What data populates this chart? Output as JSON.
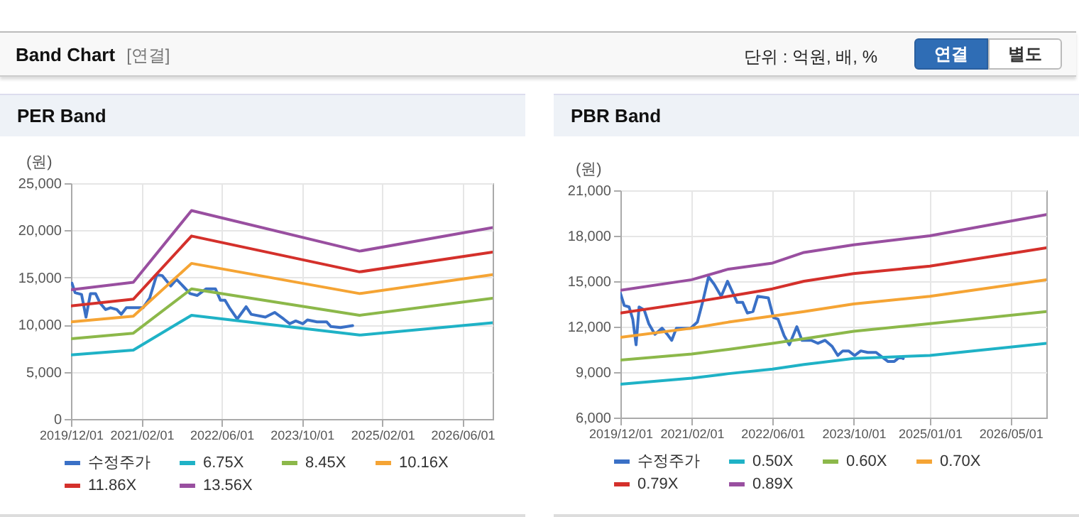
{
  "chart_data": [
    {
      "type": "other",
      "title": "Band Chart",
      "annotations": [
        "[연결]",
        "단위 : 억원, 배, %",
        "연결",
        "별도"
      ]
    },
    {
      "type": "line",
      "title": "PER Band",
      "ylabel": "(원)",
      "xlim": [
        "2019-12-01",
        "2026-12-01"
      ],
      "ylim": [
        0,
        25000
      ],
      "yticks": [
        {
          "value": 0,
          "label": "0"
        },
        {
          "value": 5000,
          "label": "5,000"
        },
        {
          "value": 10000,
          "label": "10,000"
        },
        {
          "value": 15000,
          "label": "15,000"
        },
        {
          "value": 20000,
          "label": "20,000"
        },
        {
          "value": 25000,
          "label": "25,000"
        }
      ],
      "xticks": [
        {
          "value": "2019-12-01",
          "label": "2019/12/01"
        },
        {
          "value": "2021-02-01",
          "label": "2021/02/01"
        },
        {
          "value": "2022-06-01",
          "label": "2022/06/01"
        },
        {
          "value": "2023-10-01",
          "label": "2023/10/01"
        },
        {
          "value": "2025-02-01",
          "label": "2025/02/01"
        },
        {
          "value": "2026-06-01",
          "label": "2026/06/01"
        }
      ],
      "grid": true,
      "legend": "bottom",
      "series": [
        {
          "name": "수정주가",
          "color": "#3a70c6",
          "x": [
            "2019-12-07",
            "2019-12-26",
            "2020-02-03",
            "2020-03-01",
            "2020-03-28",
            "2020-04-28",
            "2020-05-25",
            "2020-06-28",
            "2020-07-28",
            "2020-09-04",
            "2020-10-01",
            "2020-11-01",
            "2021-01-10",
            "2021-02-10",
            "2021-03-22",
            "2021-05-04",
            "2021-06-07",
            "2021-07-28",
            "2021-09-01",
            "2021-10-10",
            "2021-11-22",
            "2022-01-04",
            "2022-02-28",
            "2022-04-25",
            "2022-05-25",
            "2022-06-22",
            "2022-07-19",
            "2022-09-04",
            "2022-10-28",
            "2022-11-28",
            "2023-02-22",
            "2023-04-19",
            "2023-06-13",
            "2023-07-19",
            "2023-08-25",
            "2023-10-07",
            "2023-11-04",
            "2024-01-01",
            "2024-02-28",
            "2024-03-25",
            "2024-05-22",
            "2024-08-04"
          ],
          "values": [
            14400,
            13400,
            13200,
            10800,
            13300,
            13300,
            12300,
            11600,
            11800,
            11600,
            11100,
            11800,
            11800,
            11800,
            12800,
            15300,
            15200,
            14100,
            14800,
            14100,
            13300,
            13100,
            13800,
            13800,
            12600,
            12600,
            11800,
            10600,
            11900,
            11100,
            10800,
            11300,
            10600,
            10100,
            10400,
            10100,
            10500,
            10300,
            10300,
            9800,
            9700,
            9900
          ]
        },
        {
          "name": "6.75X",
          "color": "#1fb2c6",
          "x": [
            "2019-12-01",
            "2020-12-13",
            "2021-12-01",
            "2024-09-15",
            "2026-12-01"
          ],
          "values": [
            6800,
            7300,
            11000,
            8900,
            10200
          ]
        },
        {
          "name": "8.45X",
          "color": "#8cb84a",
          "x": [
            "2019-12-01",
            "2020-12-13",
            "2021-12-01",
            "2024-09-15",
            "2026-12-01"
          ],
          "values": [
            8500,
            9100,
            13800,
            11000,
            12800
          ]
        },
        {
          "name": "10.16X",
          "color": "#f5a434",
          "x": [
            "2019-12-01",
            "2020-12-13",
            "2021-12-01",
            "2024-09-15",
            "2026-12-01"
          ],
          "values": [
            10300,
            10900,
            16500,
            13300,
            15300
          ]
        },
        {
          "name": "11.86X",
          "color": "#d4302b",
          "x": [
            "2019-12-01",
            "2020-12-13",
            "2021-12-01",
            "2024-09-15",
            "2026-12-01"
          ],
          "values": [
            12000,
            12700,
            19400,
            15600,
            17700
          ]
        },
        {
          "name": "13.56X",
          "color": "#994fa0",
          "x": [
            "2019-12-01",
            "2020-12-13",
            "2021-12-01",
            "2024-09-15",
            "2026-12-01"
          ],
          "values": [
            13700,
            14500,
            22100,
            17800,
            20300
          ]
        }
      ]
    },
    {
      "type": "line",
      "title": "PBR Band",
      "ylabel": "(원)",
      "xlim": [
        "2019-12-01",
        "2026-12-01"
      ],
      "ylim": [
        6000,
        21000
      ],
      "yticks": [
        {
          "value": 6000,
          "label": "6,000"
        },
        {
          "value": 9000,
          "label": "9,000"
        },
        {
          "value": 12000,
          "label": "12,000"
        },
        {
          "value": 15000,
          "label": "15,000"
        },
        {
          "value": 18000,
          "label": "18,000"
        },
        {
          "value": 21000,
          "label": "21,000"
        }
      ],
      "xticks": [
        {
          "value": "2019-12-01",
          "label": "2019/12/01"
        },
        {
          "value": "2021-02-01",
          "label": "2021/02/01"
        },
        {
          "value": "2022-06-01",
          "label": "2022/06/01"
        },
        {
          "value": "2023-10-01",
          "label": "2023/10/01"
        },
        {
          "value": "2025-01-01",
          "label": "2025/01/01"
        },
        {
          "value": "2026-05-01",
          "label": "2026/05/01"
        }
      ],
      "grid": true,
      "legend": "bottom",
      "series": [
        {
          "name": "수정주가",
          "color": "#3a70c6",
          "x": [
            "2019-12-01",
            "2019-12-24",
            "2020-01-22",
            "2020-02-13",
            "2020-03-04",
            "2020-03-22",
            "2020-04-22",
            "2020-05-19",
            "2020-06-25",
            "2020-08-07",
            "2020-09-07",
            "2020-10-04",
            "2020-11-01",
            "2020-12-13",
            "2021-01-25",
            "2021-03-07",
            "2021-04-07",
            "2021-05-13",
            "2021-06-16",
            "2021-07-28",
            "2021-09-04",
            "2021-11-01",
            "2021-12-04",
            "2022-01-01",
            "2022-02-04",
            "2022-03-04",
            "2022-05-07",
            "2022-06-07",
            "2022-07-04",
            "2022-08-10",
            "2022-09-10",
            "2022-10-25",
            "2022-11-25",
            "2023-01-19",
            "2023-03-01",
            "2023-04-13",
            "2023-05-25",
            "2023-06-28",
            "2023-07-28",
            "2023-09-01",
            "2023-10-07",
            "2023-11-13",
            "2023-12-25",
            "2024-02-13",
            "2024-03-19",
            "2024-04-25",
            "2024-06-01",
            "2024-07-04",
            "2024-07-25"
          ],
          "values": [
            14200,
            13400,
            13300,
            12500,
            10800,
            13300,
            13100,
            12200,
            11500,
            11900,
            11500,
            11100,
            11900,
            11900,
            11900,
            12300,
            13600,
            15300,
            14800,
            14000,
            15000,
            13600,
            13600,
            12900,
            13000,
            14000,
            13900,
            12600,
            12500,
            11400,
            10800,
            12000,
            11100,
            11100,
            10900,
            11100,
            10700,
            10100,
            10400,
            10400,
            10100,
            10400,
            10300,
            10300,
            10000,
            9700,
            9700,
            10000,
            9900
          ]
        },
        {
          "name": "0.50X",
          "color": "#1fb2c6",
          "x": [
            "2019-12-01",
            "2021-02-01",
            "2021-09-10",
            "2022-06-01",
            "2022-12-07",
            "2023-10-01",
            "2025-01-01",
            "2026-12-01"
          ],
          "values": [
            8200,
            8600,
            8900,
            9200,
            9500,
            9900,
            10100,
            10900
          ]
        },
        {
          "name": "0.60X",
          "color": "#8cb84a",
          "x": [
            "2019-12-01",
            "2021-02-01",
            "2021-09-10",
            "2022-06-01",
            "2022-12-07",
            "2023-10-01",
            "2025-01-01",
            "2026-12-01"
          ],
          "values": [
            9800,
            10200,
            10500,
            10900,
            11200,
            11700,
            12200,
            13000
          ]
        },
        {
          "name": "0.70X",
          "color": "#f5a434",
          "x": [
            "2019-12-01",
            "2021-02-01",
            "2021-09-10",
            "2022-06-01",
            "2022-12-07",
            "2023-10-01",
            "2025-01-01",
            "2026-12-01"
          ],
          "values": [
            11300,
            11900,
            12300,
            12700,
            13000,
            13500,
            14000,
            15100
          ]
        },
        {
          "name": "0.79X",
          "color": "#d4302b",
          "x": [
            "2019-12-01",
            "2021-02-01",
            "2021-09-10",
            "2022-06-01",
            "2022-12-07",
            "2023-10-01",
            "2025-01-01",
            "2026-12-01"
          ],
          "values": [
            12900,
            13600,
            14000,
            14500,
            15000,
            15500,
            16000,
            17200
          ]
        },
        {
          "name": "0.89X",
          "color": "#994fa0",
          "x": [
            "2019-12-01",
            "2021-02-01",
            "2021-09-10",
            "2022-06-01",
            "2022-12-07",
            "2023-10-01",
            "2025-01-01",
            "2026-12-01"
          ],
          "values": [
            14400,
            15100,
            15800,
            16200,
            16900,
            17400,
            18000,
            19400
          ]
        }
      ]
    }
  ]
}
